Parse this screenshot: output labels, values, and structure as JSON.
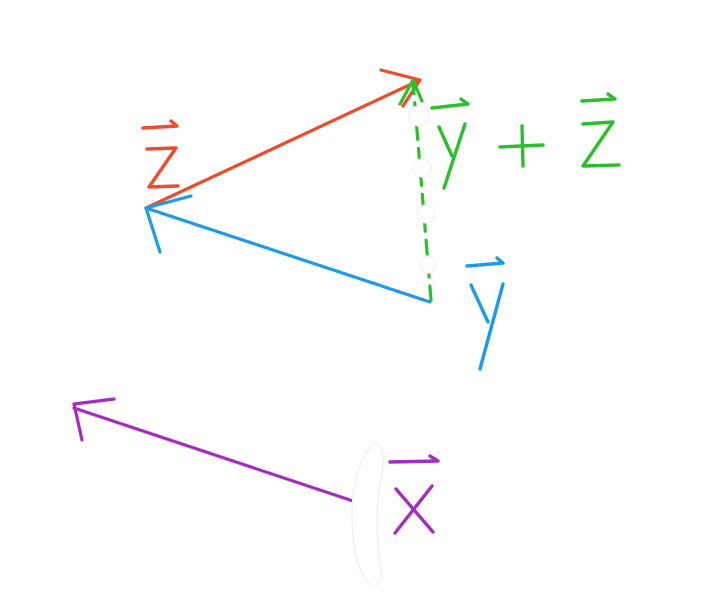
{
  "diagram": {
    "description_type": "hand-drawn vector addition sketch",
    "vectors": [
      {
        "id": "x",
        "label": "x",
        "color": "#a32cc4",
        "style": "solid"
      },
      {
        "id": "y",
        "label": "y",
        "color": "#1e9be8",
        "style": "solid"
      },
      {
        "id": "z",
        "label": "z",
        "color": "#ee4b2b",
        "style": "solid"
      },
      {
        "id": "y_plus_z",
        "label": "y + z",
        "color": "#2cbf2c",
        "style": "dashed"
      }
    ],
    "sum_expression": {
      "left": "y",
      "operator": "+",
      "right": "z"
    }
  }
}
